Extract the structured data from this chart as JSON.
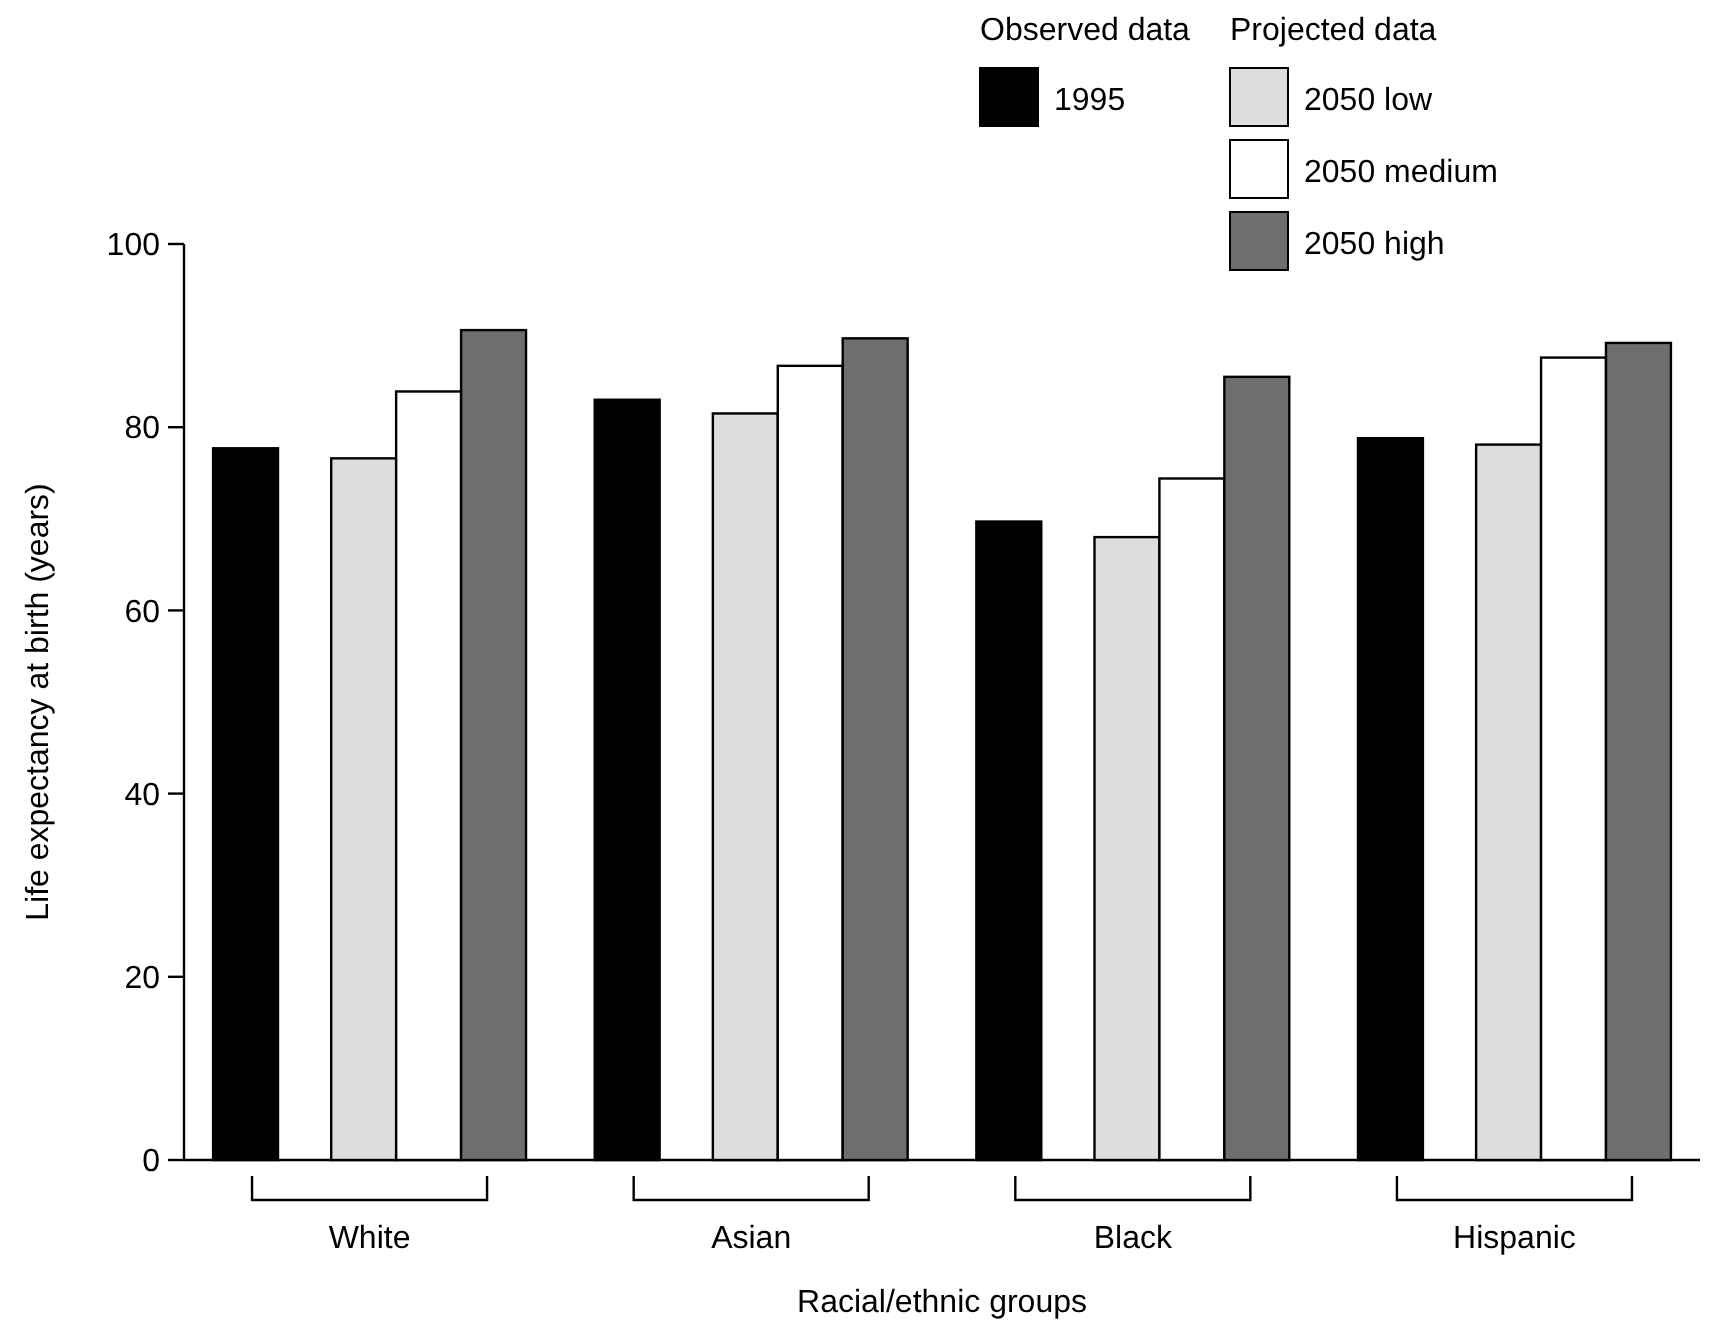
{
  "chart_data": {
    "type": "bar",
    "xlabel": "Racial/ethnic groups",
    "ylabel": "Life expectancy at birth (years)",
    "categories": [
      "White",
      "Asian",
      "Black",
      "Hispanic"
    ],
    "series": [
      {
        "name": "1995",
        "color": "#000000",
        "values": [
          77.7,
          83.0,
          69.7,
          78.8
        ]
      },
      {
        "name": "2050 low",
        "color": "#dddddd",
        "values": [
          76.6,
          81.5,
          68.0,
          78.1
        ]
      },
      {
        "name": "2050 medium",
        "color": "#ffffff",
        "values": [
          83.9,
          86.7,
          74.4,
          87.6
        ]
      },
      {
        "name": "2050 high",
        "color": "#6e6e6e",
        "values": [
          90.6,
          89.7,
          85.5,
          89.2
        ]
      }
    ],
    "ylim": [
      0,
      100
    ],
    "yticks": [
      0,
      20,
      40,
      60,
      80,
      100
    ],
    "grid": false,
    "legend": "top right",
    "annotations": [
      "Observed data",
      "Projected data"
    ]
  }
}
